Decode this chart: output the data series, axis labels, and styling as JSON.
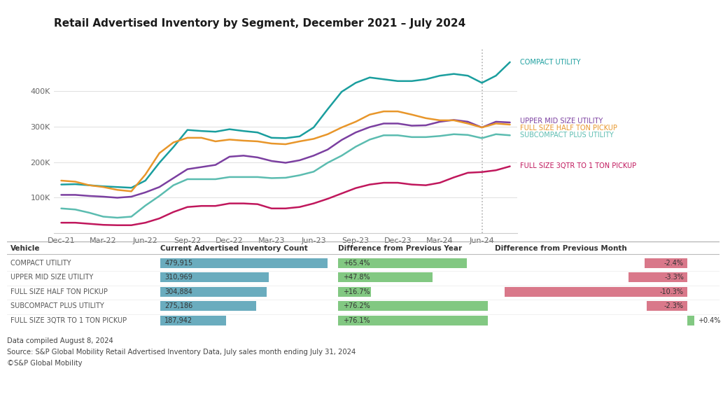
{
  "title": "Retail Advertised Inventory by Segment, December 2021 – July 2024",
  "background_color": "#ffffff",
  "line_series": [
    {
      "name": "COMPACT UTILITY",
      "color": "#1a9e9e",
      "values": [
        137000,
        138000,
        135000,
        132000,
        130000,
        128000,
        148000,
        198000,
        242000,
        290000,
        287000,
        285000,
        292000,
        287000,
        283000,
        268000,
        267000,
        272000,
        297000,
        348000,
        397000,
        422000,
        437000,
        432000,
        427000,
        427000,
        432000,
        442000,
        447000,
        442000,
        422000,
        442000,
        480000
      ]
    },
    {
      "name": "UPPER MID SIZE UTILITY",
      "color": "#7b3fa0",
      "values": [
        108000,
        108000,
        105000,
        103000,
        100000,
        103000,
        115000,
        130000,
        155000,
        180000,
        186000,
        192000,
        215000,
        218000,
        213000,
        203000,
        198000,
        205000,
        218000,
        235000,
        262000,
        283000,
        298000,
        308000,
        308000,
        302000,
        303000,
        313000,
        318000,
        313000,
        297000,
        313000,
        311000
      ]
    },
    {
      "name": "FULL SIZE HALF TON PICKUP",
      "color": "#e8962a",
      "values": [
        148000,
        145000,
        135000,
        130000,
        122000,
        118000,
        165000,
        225000,
        255000,
        268000,
        268000,
        258000,
        263000,
        260000,
        258000,
        252000,
        250000,
        258000,
        265000,
        278000,
        297000,
        313000,
        333000,
        342000,
        342000,
        333000,
        323000,
        317000,
        317000,
        308000,
        297000,
        308000,
        305000
      ]
    },
    {
      "name": "SUBCOMPACT PLUS UTILITY",
      "color": "#5bbcb0",
      "values": [
        70000,
        67000,
        58000,
        47000,
        44000,
        47000,
        78000,
        105000,
        135000,
        152000,
        152000,
        152000,
        158000,
        158000,
        158000,
        155000,
        156000,
        163000,
        173000,
        198000,
        218000,
        243000,
        263000,
        275000,
        275000,
        270000,
        270000,
        273000,
        278000,
        276000,
        267000,
        278000,
        275000
      ]
    },
    {
      "name": "FULL SIZE 3QTR TO 1 TON PICKUP",
      "color": "#c0175c",
      "values": [
        30000,
        30000,
        27000,
        24000,
        23000,
        23000,
        30000,
        42000,
        60000,
        74000,
        77000,
        77000,
        84000,
        84000,
        82000,
        70000,
        70000,
        74000,
        84000,
        97000,
        112000,
        127000,
        137000,
        142000,
        142000,
        137000,
        135000,
        142000,
        157000,
        170000,
        172000,
        177000,
        188000
      ]
    }
  ],
  "x_tick_labels": [
    "Dec-21",
    "Mar-22",
    "Jun-22",
    "Sep-22",
    "Dec-22",
    "Mar-23",
    "Jun-23",
    "Sep-23",
    "Dec-23",
    "Mar-24",
    "Jun-24"
  ],
  "x_tick_positions": [
    0,
    3,
    6,
    9,
    12,
    15,
    18,
    21,
    24,
    27,
    30
  ],
  "yticks": [
    100000,
    200000,
    300000,
    400000
  ],
  "ytick_labels": [
    "100K",
    "200K",
    "300K",
    "400K"
  ],
  "dashed_line_x": 30,
  "legend_labels": [
    {
      "text": "COMPACT UTILITY",
      "color": "#1a9e9e",
      "y": 480000
    },
    {
      "text": "UPPER MID SIZE UTILITY",
      "color": "#7b3fa0",
      "y": 315000
    },
    {
      "text": "FULL SIZE HALF TON PICKUP",
      "color": "#e8962a",
      "y": 295000
    },
    {
      "text": "SUBCOMPACT PLUS UTILITY",
      "color": "#5bbcb0",
      "y": 276000
    },
    {
      "text": "FULL SIZE 3QTR TO 1 TON PICKUP",
      "color": "#c0175c",
      "y": 190000
    }
  ],
  "table_headers": [
    "Vehicle",
    "Current Advertised Inventory Count",
    "Difference from Previous Year",
    "Difference from Previous Month"
  ],
  "table_rows": [
    {
      "vehicle": "COMPACT UTILITY",
      "count": 479915,
      "count_str": "479,915",
      "prev_year_pct": 65.4,
      "prev_year_str": "+65.4%",
      "prev_month_pct": -2.4,
      "prev_month_str": "-2.4%"
    },
    {
      "vehicle": "UPPER MID SIZE UTILITY",
      "count": 310969,
      "count_str": "310,969",
      "prev_year_pct": 47.8,
      "prev_year_str": "+47.8%",
      "prev_month_pct": -3.3,
      "prev_month_str": "-3.3%"
    },
    {
      "vehicle": "FULL SIZE HALF TON PICKUP",
      "count": 304884,
      "count_str": "304,884",
      "prev_year_pct": 16.7,
      "prev_year_str": "+16.7%",
      "prev_month_pct": -10.3,
      "prev_month_str": "-10.3%"
    },
    {
      "vehicle": "SUBCOMPACT PLUS UTILITY",
      "count": 275186,
      "count_str": "275,186",
      "prev_year_pct": 76.2,
      "prev_year_str": "+76.2%",
      "prev_month_pct": -2.3,
      "prev_month_str": "-2.3%"
    },
    {
      "vehicle": "FULL SIZE 3QTR TO 1 TON PICKUP",
      "count": 187942,
      "count_str": "187,942",
      "prev_year_pct": 76.1,
      "prev_year_str": "+76.1%",
      "prev_month_pct": 0.4,
      "prev_month_str": "+0.4%"
    }
  ],
  "max_count": 479915,
  "max_prev_year": 76.2,
  "max_prev_month": 10.3,
  "bar_color_count": "#6aacbe",
  "bar_color_year": "#82c882",
  "bar_color_month_neg": "#d9788a",
  "bar_color_month_pos": "#82c882",
  "footnotes": [
    "Data compiled August 8, 2024",
    "Source: S&P Global Mobility Retail Advertised Inventory Data, July sales month ending July 31, 2024",
    "©S&P Global Mobility"
  ]
}
